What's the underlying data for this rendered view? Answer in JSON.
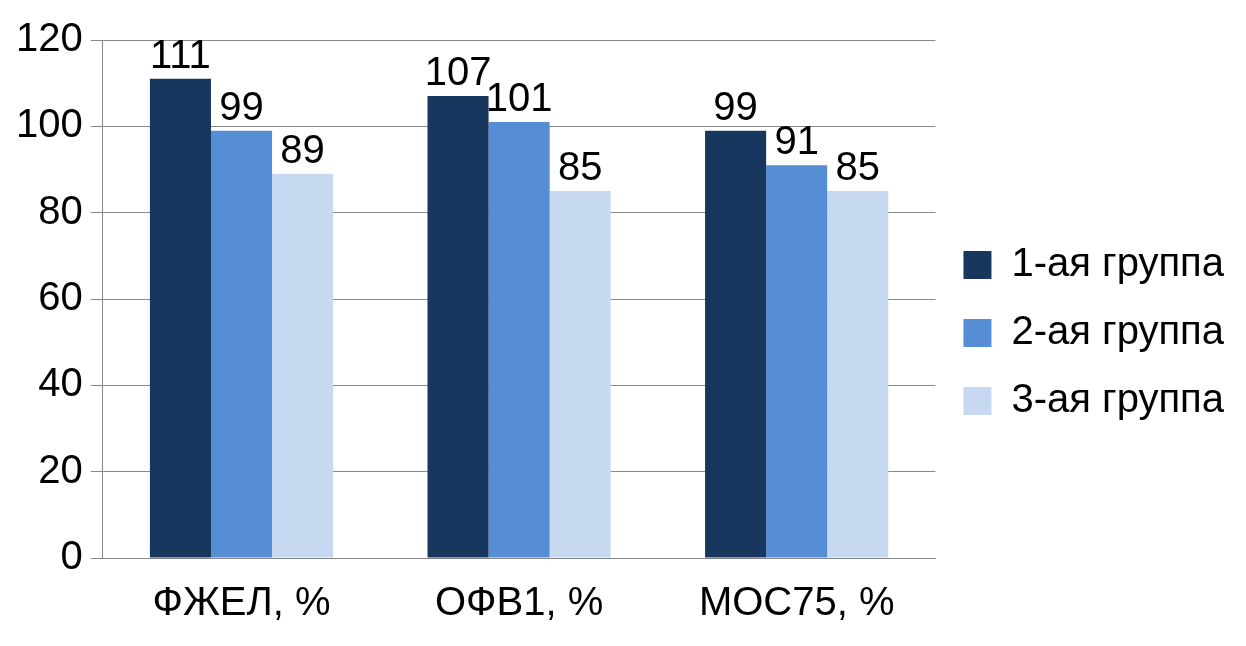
{
  "chart_data": {
    "type": "bar",
    "categories": [
      "ФЖЕЛ, %",
      "ОФВ1, %",
      "МОС75, %"
    ],
    "series": [
      {
        "name": "1-ая группа",
        "color": "#17375e",
        "values": [
          111,
          107,
          99
        ]
      },
      {
        "name": "2-ая группа",
        "color": "#558ed5",
        "values": [
          99,
          101,
          91
        ]
      },
      {
        "name": "3-ая группа",
        "color": "#c6d9f1",
        "values": [
          89,
          85,
          85
        ]
      }
    ],
    "ylim": [
      0,
      120
    ],
    "yticks": [
      0,
      20,
      40,
      60,
      80,
      100,
      120
    ],
    "grid": "y",
    "legend": "right",
    "data_labels": true
  }
}
